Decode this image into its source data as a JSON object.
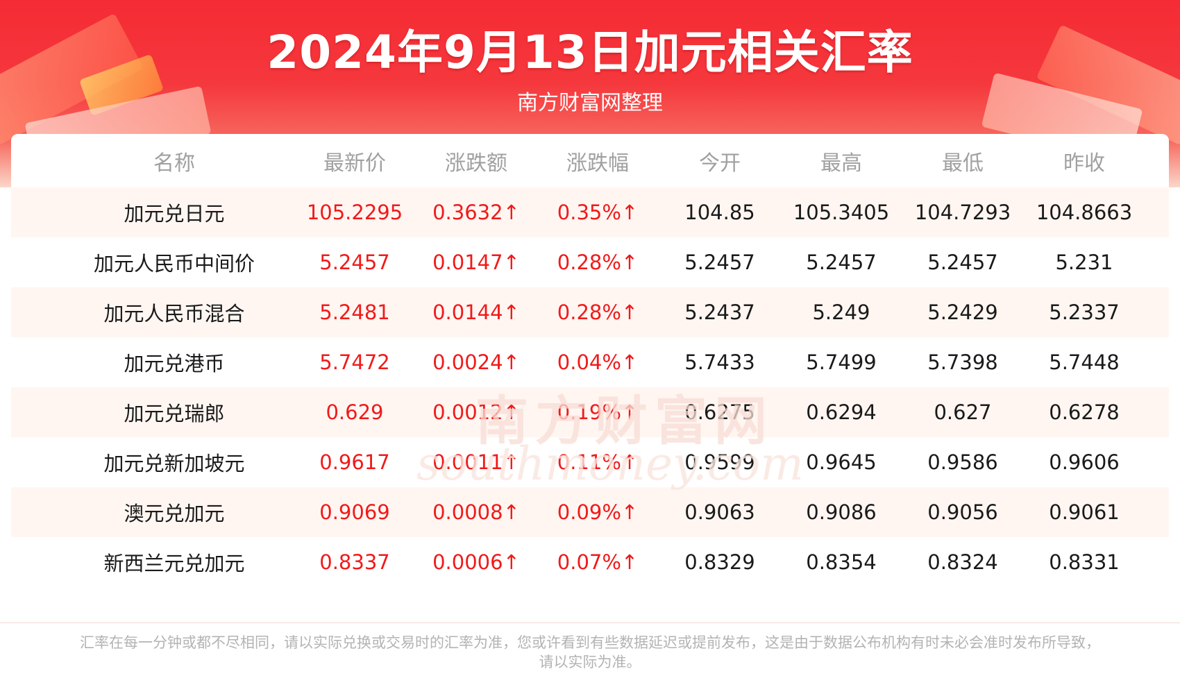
{
  "header": {
    "title": "2024年9月13日加元相关汇率",
    "subtitle": "南方财富网整理"
  },
  "table": {
    "columns": [
      "名称",
      "最新价",
      "涨跌额",
      "涨跌幅",
      "今开",
      "最高",
      "最低",
      "昨收"
    ],
    "rows": [
      [
        "加元兑日元",
        "105.2295",
        "0.3632↑",
        "0.35%↑",
        "104.85",
        "105.3405",
        "104.7293",
        "104.8663"
      ],
      [
        "加元人民币中间价",
        "5.2457",
        "0.0147↑",
        "0.28%↑",
        "5.2457",
        "5.2457",
        "5.2457",
        "5.231"
      ],
      [
        "加元人民币混合",
        "5.2481",
        "0.0144↑",
        "0.28%↑",
        "5.2437",
        "5.249",
        "5.2429",
        "5.2337"
      ],
      [
        "加元兑港币",
        "5.7472",
        "0.0024↑",
        "0.04%↑",
        "5.7433",
        "5.7499",
        "5.7398",
        "5.7448"
      ],
      [
        "加元兑瑞郎",
        "0.629",
        "0.0012↑",
        "0.19%↑",
        "0.6275",
        "0.6294",
        "0.627",
        "0.6278"
      ],
      [
        "加元兑新加坡元",
        "0.9617",
        "0.0011↑",
        "0.11%↑",
        "0.9599",
        "0.9645",
        "0.9586",
        "0.9606"
      ],
      [
        "澳元兑加元",
        "0.9069",
        "0.0008↑",
        "0.09%↑",
        "0.9063",
        "0.9086",
        "0.9056",
        "0.9061"
      ],
      [
        "新西兰元兑加元",
        "0.8337",
        "0.0006↑",
        "0.07%↑",
        "0.8329",
        "0.8354",
        "0.8324",
        "0.8331"
      ]
    ]
  },
  "watermark": {
    "cn": "南方财富网",
    "en": "southmoney.com"
  },
  "footer": {
    "line1": "汇率在每一分钟或都不尽相同，请以实际兑换或交易时的汇率为准，您或许看到有些数据延迟或提前发布，这是由于数据公布机构有时未必会准时发布所导致，",
    "line2": "请以实际为准。"
  },
  "colors": {
    "banner": "#f52b34",
    "up": "#f01a1a",
    "stripe": "#fff6f2",
    "header_text": "#a0a0a0"
  }
}
